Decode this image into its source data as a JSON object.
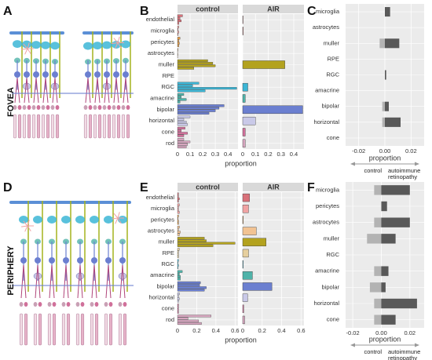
{
  "figure": {
    "panel_labels": [
      "A",
      "B",
      "C",
      "D",
      "E",
      "F"
    ],
    "region_labels": [
      "FOVEA",
      "PERIPHERY"
    ]
  },
  "chart_data": [
    {
      "type": "bar",
      "categories": [
        "endothelial",
        "microglia",
        "pericytes",
        "astrocytes",
        "muller",
        "RPE",
        "RGC",
        "amacrine",
        "bipolar",
        "horizontal",
        "cone",
        "rod"
      ],
      "colors": [
        "#d9717a",
        "#f0a3a3",
        "#e39a45",
        "#f2c393",
        "#b3a21e",
        "#e6cf9e",
        "#3cb6d6",
        "#4fb3a9",
        "#6b7fd0",
        "#c9c9e8",
        "#d0709a",
        "#d6a6bf"
      ],
      "facets": [
        {
          "name": "control",
          "values": [
            [
              0.04,
              0.02,
              0.03,
              0.01
            ],
            [
              0.01,
              0.005,
              0.01,
              0.005
            ],
            [
              0.02,
              0.01,
              0.015,
              0.01
            ],
            [
              0.005,
              0.002,
              0.003,
              0.002
            ],
            [
              0.24,
              0.28,
              0.3,
              0.13
            ],
            [
              0,
              0,
              0,
              0
            ],
            [
              0.17,
              0.12,
              0.47,
              0.22
            ],
            [
              0.05,
              0.03,
              0.07,
              0.02
            ],
            [
              0.37,
              0.33,
              0.3,
              0.25
            ],
            [
              0.1,
              0.05,
              0.07,
              0.08
            ],
            [
              0.06,
              0.03,
              0.08,
              0.05
            ],
            [
              0.05,
              0.1,
              0.08,
              0.07
            ]
          ]
        },
        {
          "name": "AIR",
          "values": [
            0.003,
            0.005,
            0,
            0,
            0.33,
            0,
            0.04,
            0.02,
            0.47,
            0.1,
            0.02,
            0.02
          ]
        }
      ],
      "xlabel": "proportion",
      "xlim": [
        0,
        0.48
      ],
      "xticks": [
        0,
        0.1,
        0.2,
        0.3,
        0.4
      ]
    },
    {
      "type": "diverging",
      "categories": [
        "microglia",
        "astrocytes",
        "muller",
        "RPE",
        "RGC",
        "amacrine",
        "bipolar",
        "horizontal",
        "cone"
      ],
      "series": [
        {
          "name": "control",
          "color": "#b3b3b3",
          "values": [
            0,
            0,
            -0.004,
            0,
            0,
            0,
            -0.002,
            -0.002,
            0
          ]
        },
        {
          "name": "autoimmune retinopathy",
          "color": "#595959",
          "values": [
            0.004,
            0,
            0.011,
            0,
            0.001,
            0,
            0.003,
            0.012,
            0
          ]
        }
      ],
      "xlabel": "proportion",
      "xlim": [
        -0.03,
        0.03
      ],
      "xticks": [
        -0.02,
        {
          "value": 0,
          "label": "0.00"
        },
        0.02
      ]
    },
    {
      "type": "bar",
      "categories": [
        "endothelial",
        "microglia",
        "pericytes",
        "astrocytes",
        "muller",
        "RPE",
        "RGC",
        "amacrine",
        "bipolar",
        "horizontal",
        "cone",
        "rod"
      ],
      "colors": [
        "#d9717a",
        "#f0a3a3",
        "#e39a45",
        "#f2c393",
        "#b3a21e",
        "#e6cf9e",
        "#3cb6d6",
        "#4fb3a9",
        "#6b7fd0",
        "#c9c9e8",
        "#d0709a",
        "#d6a6bf"
      ],
      "facets": [
        {
          "name": "control",
          "values": [
            [
              0.01,
              0.01,
              0.02,
              0.01
            ],
            [
              0.02,
              0.01,
              0.01,
              0.02
            ],
            [
              0.01,
              0.005,
              0.01,
              0.01
            ],
            [
              0.02,
              0.01,
              0.03,
              0.02
            ],
            [
              0.28,
              0.3,
              0.6,
              0.37
            ],
            [
              0.02,
              0.01,
              0.01,
              0.01
            ],
            [
              0.01,
              0.005,
              0.01,
              0.005
            ],
            [
              0.05,
              0.02,
              0.03,
              0.03
            ],
            [
              0.24,
              0.23,
              0.3,
              0.28
            ],
            [
              0.02,
              0.01,
              0.02,
              0.01
            ],
            [
              0.01,
              0.01,
              0.01,
              0.01
            ],
            [
              0.35,
              0.11,
              0.22,
              0.25
            ]
          ]
        },
        {
          "name": "AIR",
          "values": [
            0.07,
            0.06,
            0.005,
            0.14,
            0.24,
            0.06,
            0.005,
            0.1,
            0.3,
            0.05,
            0.01,
            0.02
          ]
        }
      ],
      "xlabel": "proportion",
      "xlim": [
        0,
        0.63
      ],
      "xticks": [
        0,
        0.2,
        0.4,
        0.6
      ]
    },
    {
      "type": "diverging",
      "categories": [
        "microglia",
        "pericytes",
        "astrocytes",
        "muller",
        "RGC",
        "amacrine",
        "bipolar",
        "horizontal",
        "cone"
      ],
      "series": [
        {
          "name": "control",
          "color": "#b3b3b3",
          "values": [
            -0.005,
            0,
            -0.005,
            -0.01,
            0,
            -0.005,
            -0.008,
            -0.005,
            -0.005
          ]
        },
        {
          "name": "autoimmune retinopathy",
          "color": "#595959",
          "values": [
            0.02,
            0.004,
            0.02,
            0.01,
            0,
            0.005,
            0.003,
            0.025,
            0.01
          ]
        }
      ],
      "xlabel": "proportion",
      "xlim": [
        -0.025,
        0.03
      ],
      "xticks": [
        -0.02,
        {
          "value": 0,
          "label": "0.00"
        },
        0.02
      ]
    }
  ]
}
